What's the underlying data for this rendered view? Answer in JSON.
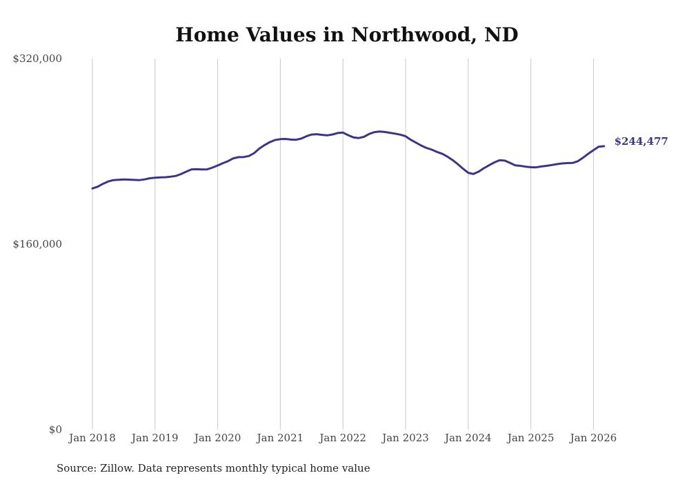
{
  "chart_data": {
    "type": "line",
    "title": "Home Values in Northwood, ND",
    "source": "Source: Zillow. Data represents monthly typical home value",
    "y_ticks": [
      {
        "value": 0,
        "label": "$0"
      },
      {
        "value": 160000,
        "label": "$160,000"
      },
      {
        "value": 320000,
        "label": "$320,000"
      }
    ],
    "ylim": [
      0,
      320000
    ],
    "x_ticks": [
      {
        "value": 2018,
        "label": "Jan 2018"
      },
      {
        "value": 2019,
        "label": "Jan 2019"
      },
      {
        "value": 2020,
        "label": "Jan 2020"
      },
      {
        "value": 2021,
        "label": "Jan 2021"
      },
      {
        "value": 2022,
        "label": "Jan 2022"
      },
      {
        "value": 2023,
        "label": "Jan 2023"
      },
      {
        "value": 2024,
        "label": "Jan 2024"
      },
      {
        "value": 2025,
        "label": "Jan 2025"
      },
      {
        "value": 2026,
        "label": "Jan 2026"
      }
    ],
    "xlim": [
      2018,
      2026.17
    ],
    "grid": "vertical",
    "series": [
      {
        "color": "#3b3487",
        "end_label": "$244,477",
        "x": [
          2018.0,
          2018.083,
          2018.167,
          2018.25,
          2018.333,
          2018.417,
          2018.5,
          2018.583,
          2018.667,
          2018.75,
          2018.833,
          2018.917,
          2019.0,
          2019.083,
          2019.167,
          2019.25,
          2019.333,
          2019.417,
          2019.5,
          2019.583,
          2019.667,
          2019.75,
          2019.833,
          2019.917,
          2020.0,
          2020.083,
          2020.167,
          2020.25,
          2020.333,
          2020.417,
          2020.5,
          2020.583,
          2020.667,
          2020.75,
          2020.833,
          2020.917,
          2021.0,
          2021.083,
          2021.167,
          2021.25,
          2021.333,
          2021.417,
          2021.5,
          2021.583,
          2021.667,
          2021.75,
          2021.833,
          2021.917,
          2022.0,
          2022.083,
          2022.167,
          2022.25,
          2022.333,
          2022.417,
          2022.5,
          2022.583,
          2022.667,
          2022.75,
          2022.833,
          2022.917,
          2023.0,
          2023.083,
          2023.167,
          2023.25,
          2023.333,
          2023.417,
          2023.5,
          2023.583,
          2023.667,
          2023.75,
          2023.833,
          2023.917,
          2024.0,
          2024.083,
          2024.167,
          2024.25,
          2024.333,
          2024.417,
          2024.5,
          2024.583,
          2024.667,
          2024.75,
          2024.833,
          2024.917,
          2025.0,
          2025.083,
          2025.167,
          2025.25,
          2025.333,
          2025.417,
          2025.5,
          2025.583,
          2025.667,
          2025.75,
          2025.833,
          2025.917,
          2026.0,
          2026.083,
          2026.167
        ],
        "y": [
          208000,
          209500,
          212000,
          214000,
          215200,
          215500,
          215800,
          215600,
          215400,
          215200,
          215800,
          216800,
          217300,
          217500,
          217700,
          218200,
          218800,
          220500,
          222500,
          224500,
          224600,
          224400,
          224500,
          226000,
          227800,
          229800,
          231600,
          234000,
          235000,
          235100,
          236000,
          238500,
          242500,
          245500,
          248000,
          249800,
          250500,
          250700,
          250200,
          250000,
          251000,
          253000,
          254500,
          254800,
          254200,
          253800,
          254600,
          255800,
          256200,
          254000,
          252000,
          251500,
          252500,
          255000,
          256600,
          257100,
          256700,
          256000,
          255300,
          254400,
          253000,
          250000,
          247500,
          245000,
          243000,
          241500,
          239500,
          238000,
          235500,
          232500,
          229000,
          225000,
          221500,
          220500,
          222500,
          225500,
          228000,
          230500,
          232300,
          232000,
          230000,
          228000,
          227500,
          226800,
          226300,
          226200,
          227000,
          227500,
          228200,
          229000,
          229600,
          229900,
          230000,
          231500,
          234500,
          238000,
          241000,
          244000,
          244477
        ]
      }
    ]
  }
}
